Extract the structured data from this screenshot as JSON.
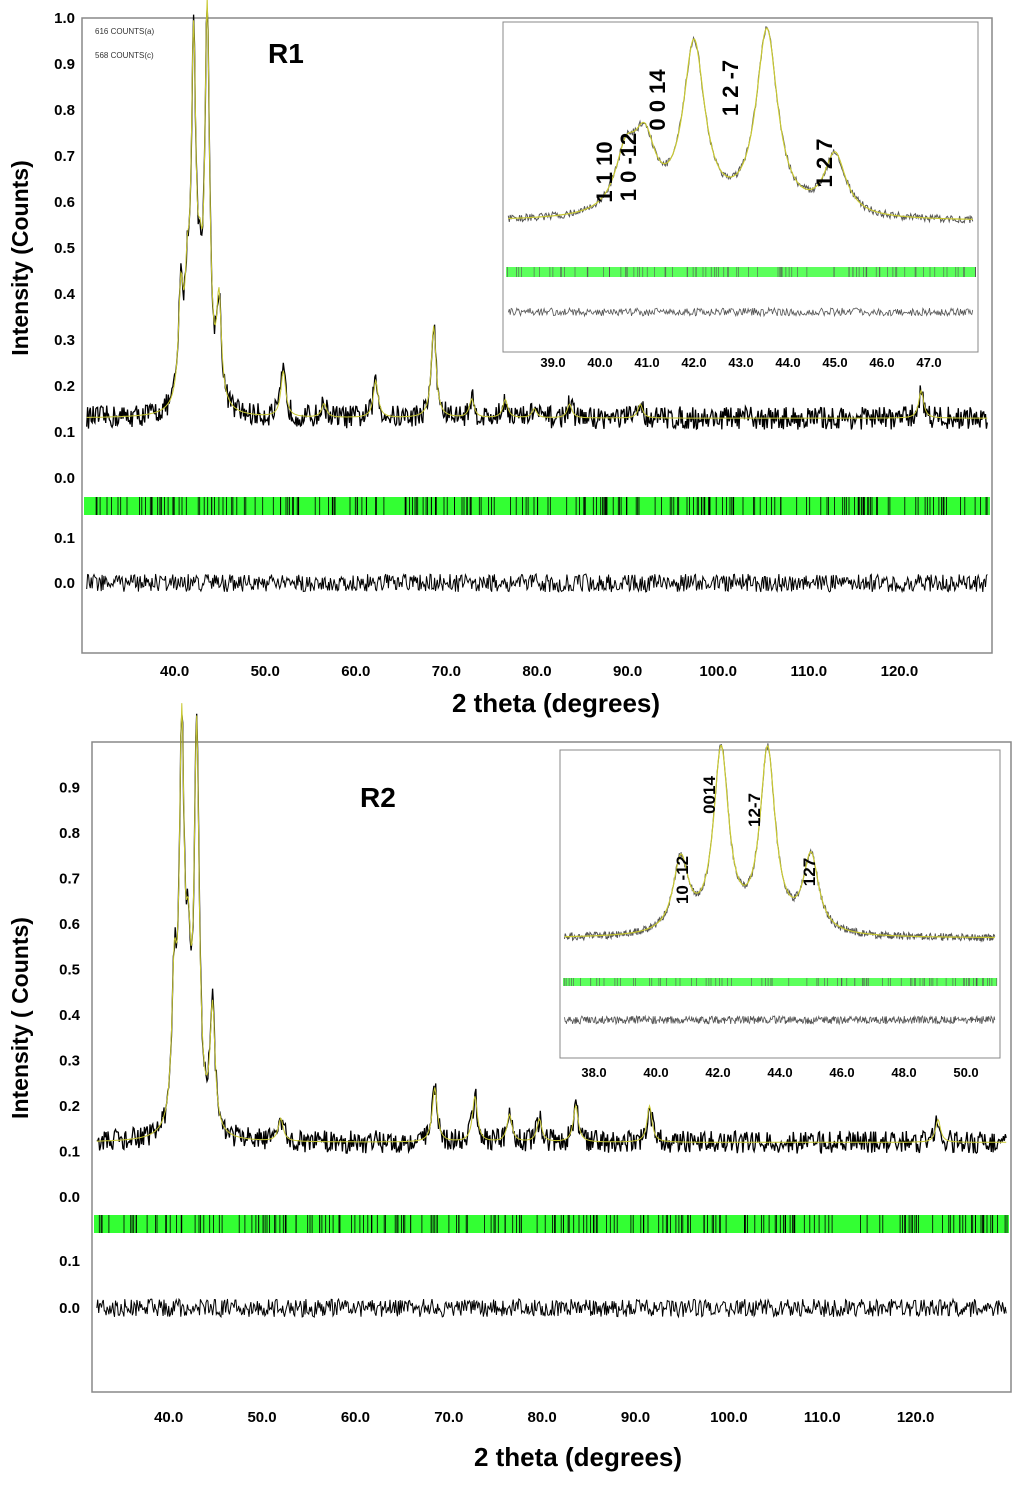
{
  "colors": {
    "profile": "#000000",
    "fit": "#c8c832",
    "reflections": "#33ff33",
    "frame": "#888888"
  },
  "chart_data": [
    {
      "type": "line",
      "panel_label": "R1",
      "xlabel": "2 theta (degrees)",
      "ylabel": "Intensity (Counts)",
      "xlim": [
        30,
        130
      ],
      "x_ticks": [
        "40.0",
        "50.0",
        "60.0",
        "70.0",
        "80.0",
        "90.0",
        "100.0",
        "110.0",
        "120.0"
      ],
      "y_ticks": [
        "1.0",
        "0.9",
        "0.8",
        "0.7",
        "0.6",
        "0.5",
        "0.4",
        "0.3",
        "0.2",
        "0.1",
        "0.0"
      ],
      "diff_ticks": [
        "0.1",
        "0.0"
      ],
      "count_labels": [
        "616 COUNTS(a)",
        "568 COUNTS(c)"
      ],
      "background": 0.13,
      "peaks": [
        {
          "x": 40.7,
          "y": 0.36
        },
        {
          "x": 41.4,
          "y": 0.33
        },
        {
          "x": 42.1,
          "y": 0.88
        },
        {
          "x": 42.8,
          "y": 0.3
        },
        {
          "x": 43.6,
          "y": 0.97
        },
        {
          "x": 44.9,
          "y": 0.35
        },
        {
          "x": 52.0,
          "y": 0.23
        },
        {
          "x": 56.5,
          "y": 0.16
        },
        {
          "x": 62.2,
          "y": 0.21
        },
        {
          "x": 68.6,
          "y": 0.33
        },
        {
          "x": 72.8,
          "y": 0.17
        },
        {
          "x": 76.5,
          "y": 0.17
        },
        {
          "x": 79.7,
          "y": 0.15
        },
        {
          "x": 83.6,
          "y": 0.16
        },
        {
          "x": 91.4,
          "y": 0.16
        },
        {
          "x": 122.4,
          "y": 0.19
        }
      ],
      "inset": {
        "xlim": [
          38.0,
          48.0
        ],
        "x_ticks": [
          "39.0",
          "40.0",
          "41.0",
          "42.0",
          "43.0",
          "44.0",
          "45.0",
          "46.0",
          "47.0"
        ],
        "reflections": [
          {
            "label": "1 1 10",
            "x": 40.5
          },
          {
            "label": "1 0 -12",
            "x": 40.9
          },
          {
            "label": "0 0 14",
            "x": 41.9
          },
          {
            "label": "1 2 -7",
            "x": 43.3
          },
          {
            "label": "1 2 7",
            "x": 44.9
          }
        ],
        "peaks": [
          {
            "x": 40.55,
            "y": 0.3
          },
          {
            "x": 40.95,
            "y": 0.36
          },
          {
            "x": 42.0,
            "y": 0.92
          },
          {
            "x": 43.55,
            "y": 1.0
          },
          {
            "x": 45.0,
            "y": 0.33
          }
        ]
      }
    },
    {
      "type": "line",
      "panel_label": "R2",
      "xlabel": "2 theta (degrees)",
      "ylabel": "Intensity ( Counts)",
      "xlim": [
        32,
        130
      ],
      "x_ticks": [
        "40.0",
        "50.0",
        "60.0",
        "70.0",
        "80.0",
        "90.0",
        "100.0",
        "110.0",
        "120.0"
      ],
      "y_ticks": [
        "0.9",
        "0.8",
        "0.7",
        "0.6",
        "0.5",
        "0.4",
        "0.3",
        "0.2",
        "0.1",
        "0.0"
      ],
      "diff_ticks": [
        "0.1",
        "0.0"
      ],
      "background": 0.12,
      "peaks": [
        {
          "x": 40.6,
          "y": 0.42
        },
        {
          "x": 41.4,
          "y": 0.96
        },
        {
          "x": 42.1,
          "y": 0.4
        },
        {
          "x": 43.0,
          "y": 0.98
        },
        {
          "x": 44.7,
          "y": 0.39
        },
        {
          "x": 52.0,
          "y": 0.17
        },
        {
          "x": 68.5,
          "y": 0.24
        },
        {
          "x": 72.8,
          "y": 0.22
        },
        {
          "x": 76.5,
          "y": 0.18
        },
        {
          "x": 79.7,
          "y": 0.17
        },
        {
          "x": 83.6,
          "y": 0.2
        },
        {
          "x": 91.5,
          "y": 0.2
        },
        {
          "x": 122.4,
          "y": 0.17
        }
      ],
      "inset": {
        "xlim": [
          37.0,
          51.0
        ],
        "x_ticks": [
          "38.0",
          "40.0",
          "42.0",
          "44.0",
          "46.0",
          "48.0",
          "50.0"
        ],
        "reflections": [
          {
            "label": "10 -12",
            "x": 40.7
          },
          {
            "label": "0014",
            "x": 41.9
          },
          {
            "label": "12-7",
            "x": 43.3
          },
          {
            "label": "127",
            "x": 44.9
          }
        ],
        "peaks": [
          {
            "x": 40.8,
            "y": 0.4
          },
          {
            "x": 42.1,
            "y": 1.0
          },
          {
            "x": 43.6,
            "y": 1.0
          },
          {
            "x": 45.0,
            "y": 0.42
          }
        ]
      }
    }
  ]
}
